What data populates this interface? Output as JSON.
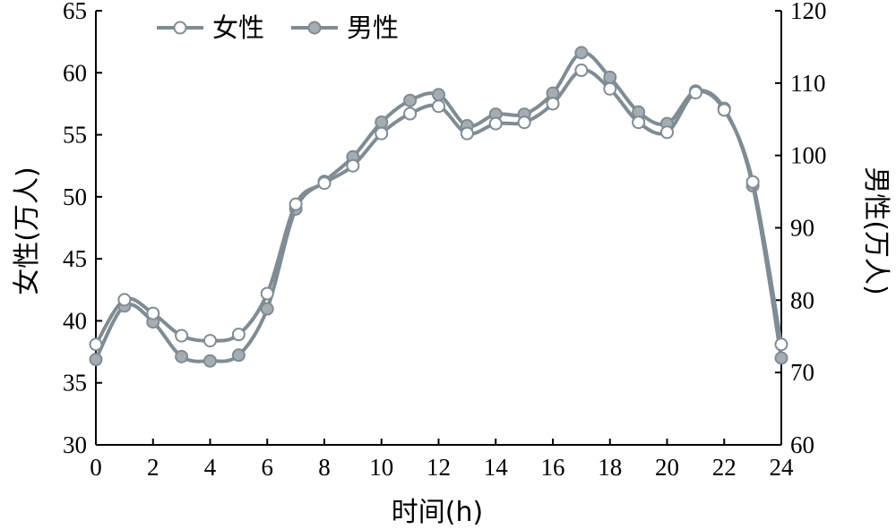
{
  "colors": {
    "line": "#7f8c94",
    "female_marker_fill": "#ffffff",
    "male_marker_fill": "#a5adb3",
    "axis": "#000000"
  },
  "chart_data": {
    "type": "line",
    "xlabel": "时间(h)",
    "ylabel_left": "女性(万人)",
    "ylabel_right": "男性(万人)",
    "x": [
      0,
      1,
      2,
      3,
      4,
      5,
      6,
      7,
      8,
      9,
      10,
      11,
      12,
      13,
      14,
      15,
      16,
      17,
      18,
      19,
      20,
      21,
      22,
      23,
      24
    ],
    "xlim": [
      0,
      24
    ],
    "xticks": [
      "0",
      "2",
      "4",
      "6",
      "8",
      "10",
      "12",
      "14",
      "16",
      "18",
      "20",
      "22",
      "24"
    ],
    "xtick_values": [
      0,
      2,
      4,
      6,
      8,
      10,
      12,
      14,
      16,
      18,
      20,
      22,
      24
    ],
    "ylim_left": [
      30,
      65
    ],
    "yticks_left": [
      "30",
      "35",
      "40",
      "45",
      "50",
      "55",
      "60",
      "65"
    ],
    "ytick_values_left": [
      30,
      35,
      40,
      45,
      50,
      55,
      60,
      65
    ],
    "ylim_right": [
      60,
      120
    ],
    "yticks_right": [
      "60",
      "70",
      "80",
      "90",
      "100",
      "110",
      "120"
    ],
    "ytick_values_right": [
      60,
      70,
      80,
      90,
      100,
      110,
      120
    ],
    "legend_position": "top-left",
    "grid": false,
    "series": [
      {
        "name": "女性",
        "axis": "left",
        "marker": "hollow-circle",
        "values": [
          38.1,
          41.7,
          40.6,
          38.8,
          38.4,
          38.9,
          42.2,
          49.4,
          51.1,
          52.5,
          55.1,
          56.7,
          57.3,
          55.1,
          55.9,
          56.0,
          57.5,
          60.2,
          58.7,
          56.0,
          55.2,
          58.4,
          57.0,
          51.2,
          38.1
        ]
      },
      {
        "name": "男性",
        "axis": "right",
        "marker": "filled-circle",
        "values": [
          71.8,
          79.2,
          77.0,
          72.2,
          71.6,
          72.4,
          78.8,
          92.6,
          96.4,
          99.8,
          104.6,
          107.6,
          108.4,
          104.1,
          105.7,
          105.7,
          108.6,
          114.2,
          110.8,
          106.0,
          104.4,
          108.9,
          106.5,
          95.8,
          72.0
        ]
      }
    ]
  }
}
